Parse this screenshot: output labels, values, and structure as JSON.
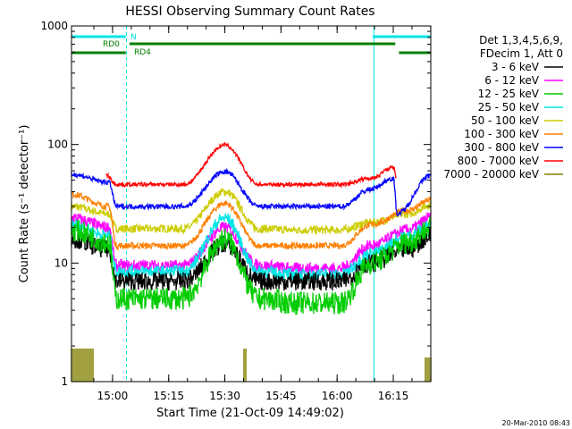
{
  "chart_data": {
    "type": "line",
    "title": "HESSI Observing Summary Count Rates",
    "xlabel": "Start Time (21-Oct-09 14:49:02)",
    "ylabel": "Count Rate (s⁻¹ detector⁻¹)",
    "yscale": "log",
    "ylim": [
      1,
      1000
    ],
    "xlim_minutes_after_start": [
      0,
      96
    ],
    "x_ticks": [
      "15:00",
      "15:15",
      "15:30",
      "15:45",
      "16:00",
      "16:15"
    ],
    "x_tick_minutes": [
      10.97,
      25.97,
      40.97,
      55.97,
      70.97,
      85.97
    ],
    "y_ticks": [
      1,
      10,
      100,
      1000
    ],
    "y_tick_labels": [
      "1",
      "10",
      "100",
      "1000"
    ],
    "legend_header": [
      "Det 1,3,4,5,6,9,",
      "FDecim 1, Att 0"
    ],
    "legend_placement": "right",
    "series": [
      {
        "name": "3 - 6 keV",
        "color": "#000000",
        "knots_t": [
          0,
          10,
          12,
          30,
          41,
          50,
          60,
          72,
          80,
          90,
          96
        ],
        "knots_v": [
          16,
          13,
          7,
          7,
          14.5,
          7,
          7,
          7,
          10,
          13,
          17
        ]
      },
      {
        "name": "6 - 12 keV",
        "color": "#ff00ff",
        "knots_t": [
          0,
          10,
          12,
          30,
          41,
          50,
          60,
          72,
          80,
          90,
          96
        ],
        "knots_v": [
          24,
          20,
          9.5,
          9.5,
          20,
          9.5,
          9,
          9,
          14,
          19,
          24
        ]
      },
      {
        "name": "12 - 25 keV",
        "color": "#00cc00",
        "knots_t": [
          0,
          10,
          12,
          30,
          41,
          50,
          60,
          72,
          80,
          90,
          96
        ],
        "knots_v": [
          19,
          15,
          5,
          5,
          16,
          5,
          4.6,
          4.6,
          10,
          15,
          20
        ]
      },
      {
        "name": "25 - 50 keV",
        "color": "#00e5e5",
        "knots_t": [
          0,
          10,
          12,
          30,
          41,
          50,
          60,
          72,
          80,
          90,
          96
        ],
        "knots_v": [
          21,
          17,
          8.5,
          8.5,
          24,
          8.5,
          8,
          8,
          12,
          17,
          21
        ]
      },
      {
        "name": "50 - 100 keV",
        "color": "#cccc00",
        "knots_t": [
          0,
          10,
          12,
          30,
          41,
          50,
          60,
          72,
          80,
          90,
          96
        ],
        "knots_v": [
          30,
          26,
          19.5,
          19.5,
          40,
          19.5,
          19,
          19,
          22,
          26,
          31
        ]
      },
      {
        "name": "100 - 300 keV",
        "color": "#ff7f00",
        "knots_t": [
          0,
          10,
          12,
          30,
          41,
          50,
          60,
          72,
          80,
          90,
          96
        ],
        "knots_v": [
          38,
          30,
          14,
          14,
          32,
          14,
          14,
          14,
          21,
          28,
          34
        ]
      },
      {
        "name": "300 - 800 keV",
        "color": "#0000ff",
        "knots_t": [
          0,
          10,
          12,
          30,
          41,
          50,
          60,
          72,
          80,
          86,
          87,
          96
        ],
        "knots_v": [
          56,
          48,
          30,
          30,
          59,
          30,
          30,
          30,
          42,
          52,
          26,
          55
        ]
      },
      {
        "name": "800 - 7000 keV",
        "color": "#ff0000",
        "knots_t": [
          9.3,
          12,
          30,
          41,
          50,
          60,
          72,
          80,
          86,
          86.8
        ],
        "knots_v": [
          55,
          46,
          46,
          99,
          46,
          46,
          46,
          52,
          64,
          52
        ]
      },
      {
        "name": "7000 - 20000 keV",
        "color": "#808000",
        "bursts": [
          [
            0,
            6,
            1.9
          ],
          [
            46,
            47,
            1.9
          ],
          [
            94.5,
            96,
            1.6
          ]
        ],
        "base": 1
      }
    ],
    "annotations": {
      "time_markers_minutes": [
        0,
        14.7,
        80.8,
        96
      ],
      "bars": [
        {
          "label": "N",
          "color": "#00e5e5",
          "segments": [
            [
              0,
              14.5
            ],
            [
              80.5,
              96
            ]
          ]
        },
        {
          "label": "RD0",
          "color": "#008000",
          "segments": [
            [
              15.5,
              86.5
            ]
          ]
        },
        {
          "label": "RD4",
          "color": "#008000",
          "segments": [
            [
              0,
              14.5
            ],
            [
              87.5,
              96
            ]
          ]
        }
      ]
    },
    "footer": "20-Mar-2010 08:43"
  }
}
